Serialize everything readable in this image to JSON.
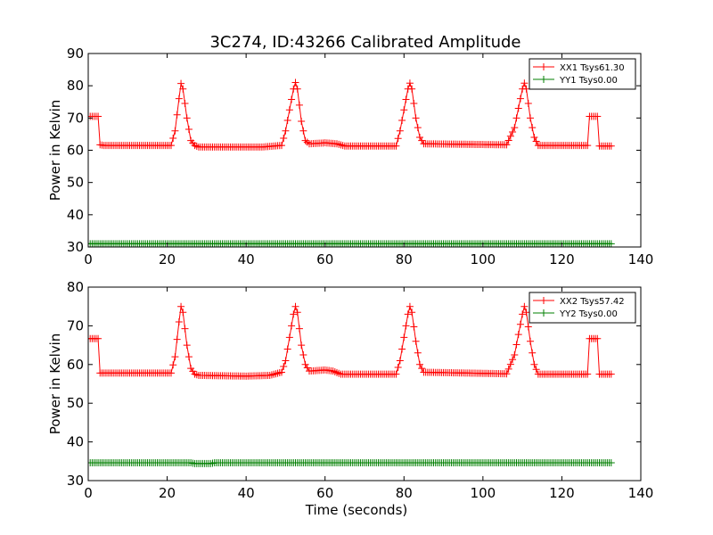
{
  "figure": {
    "title": "3C274, ID:43266 Calibrated Amplitude"
  },
  "colors": {
    "xx": "#ff0000",
    "yy": "#007f00",
    "axes": "#000000"
  },
  "chart_data": [
    {
      "type": "line",
      "marker": "plus",
      "xlabel": "",
      "ylabel": "Power in Kelvin",
      "xlim": [
        0,
        140
      ],
      "ylim": [
        30,
        90
      ],
      "xticks": [
        "0",
        "20",
        "40",
        "60",
        "80",
        "100",
        "120",
        "140"
      ],
      "yticks": [
        "30",
        "40",
        "50",
        "60",
        "70",
        "80",
        "90"
      ],
      "legend_position": "top-right",
      "series": [
        {
          "name": "XX1 Tsys61.30",
          "color": "#ff0000",
          "x_start": 0,
          "x_step": 0.5,
          "base": [
            [
              0,
              70.5
            ],
            [
              2.5,
              70.5
            ],
            [
              3,
              61.7
            ],
            [
              4,
              61.5
            ],
            [
              21,
              61.5
            ],
            [
              22,
              66
            ],
            [
              23,
              76
            ],
            [
              23.5,
              80.7
            ],
            [
              24,
              79
            ],
            [
              25,
              70
            ],
            [
              26,
              63
            ],
            [
              27,
              61.5
            ],
            [
              28,
              61.0
            ],
            [
              44,
              61.0
            ],
            [
              49,
              61.5
            ],
            [
              50,
              66
            ],
            [
              52,
              79
            ],
            [
              52.5,
              81
            ],
            [
              53,
              79
            ],
            [
              54,
              69
            ],
            [
              55,
              63
            ],
            [
              56,
              62
            ],
            [
              60,
              62.3
            ],
            [
              63,
              62
            ],
            [
              65,
              61.3
            ],
            [
              78,
              61.3
            ],
            [
              79,
              66
            ],
            [
              81,
              79
            ],
            [
              81.5,
              80.8
            ],
            [
              82,
              79
            ],
            [
              83,
              70
            ],
            [
              84,
              64
            ],
            [
              85,
              62
            ],
            [
              106,
              61.7
            ],
            [
              108,
              67
            ],
            [
              110,
              79
            ],
            [
              110.5,
              80.8
            ],
            [
              111,
              79
            ],
            [
              112,
              70
            ],
            [
              113,
              64
            ],
            [
              114,
              61.5
            ],
            [
              126,
              61.5
            ],
            [
              126.5,
              61.5
            ],
            [
              127,
              70.5
            ],
            [
              129,
              70.5
            ],
            [
              129.5,
              61.3
            ],
            [
              132.5,
              61.3
            ]
          ]
        },
        {
          "name": "YY1 Tsys0.00",
          "color": "#007f00",
          "x_start": 0,
          "x_step": 0.5,
          "base": [
            [
              0,
              31.0
            ],
            [
              132.5,
              31.0
            ]
          ]
        }
      ]
    },
    {
      "type": "line",
      "marker": "plus",
      "xlabel": "Time (seconds)",
      "ylabel": "Power in Kelvin",
      "xlim": [
        0,
        140
      ],
      "ylim": [
        30,
        80
      ],
      "xticks": [
        "0",
        "20",
        "40",
        "60",
        "80",
        "100",
        "120",
        "140"
      ],
      "yticks": [
        "30",
        "40",
        "50",
        "60",
        "70",
        "80"
      ],
      "legend_position": "top-right",
      "series": [
        {
          "name": "XX2 Tsys57.42",
          "color": "#ff0000",
          "x_start": 0,
          "x_step": 0.5,
          "base": [
            [
              0,
              66.7
            ],
            [
              2.5,
              66.7
            ],
            [
              3,
              57.8
            ],
            [
              21,
              57.8
            ],
            [
              22,
              62
            ],
            [
              23,
              71
            ],
            [
              23.5,
              75
            ],
            [
              24,
              73.5
            ],
            [
              25,
              65
            ],
            [
              26,
              59
            ],
            [
              27,
              57.5
            ],
            [
              28,
              57.2
            ],
            [
              40,
              57.0
            ],
            [
              46,
              57.2
            ],
            [
              49,
              58
            ],
            [
              50,
              61
            ],
            [
              52,
              73
            ],
            [
              52.5,
              75
            ],
            [
              53,
              73.5
            ],
            [
              54,
              65
            ],
            [
              55,
              60
            ],
            [
              56,
              58.3
            ],
            [
              60,
              58.6
            ],
            [
              62,
              58.3
            ],
            [
              64,
              57.5
            ],
            [
              78,
              57.5
            ],
            [
              79,
              61
            ],
            [
              81,
              73
            ],
            [
              81.5,
              75
            ],
            [
              82,
              73.5
            ],
            [
              83,
              66
            ],
            [
              84,
              60
            ],
            [
              85,
              58
            ],
            [
              106,
              57.6
            ],
            [
              108,
              62.5
            ],
            [
              110,
              73
            ],
            [
              110.5,
              75
            ],
            [
              111,
              73.5
            ],
            [
              112,
              66
            ],
            [
              113,
              60
            ],
            [
              114,
              57.5
            ],
            [
              126,
              57.5
            ],
            [
              126.5,
              57.5
            ],
            [
              127,
              66.7
            ],
            [
              129,
              66.7
            ],
            [
              129.5,
              57.5
            ],
            [
              132.5,
              57.5
            ]
          ]
        },
        {
          "name": "YY2 Tsys0.00",
          "color": "#007f00",
          "x_start": 0,
          "x_step": 0.5,
          "base": [
            [
              0,
              34.6
            ],
            [
              26,
              34.6
            ],
            [
              27,
              34.4
            ],
            [
              31,
              34.4
            ],
            [
              32,
              34.6
            ],
            [
              132.5,
              34.6
            ]
          ]
        }
      ]
    }
  ]
}
